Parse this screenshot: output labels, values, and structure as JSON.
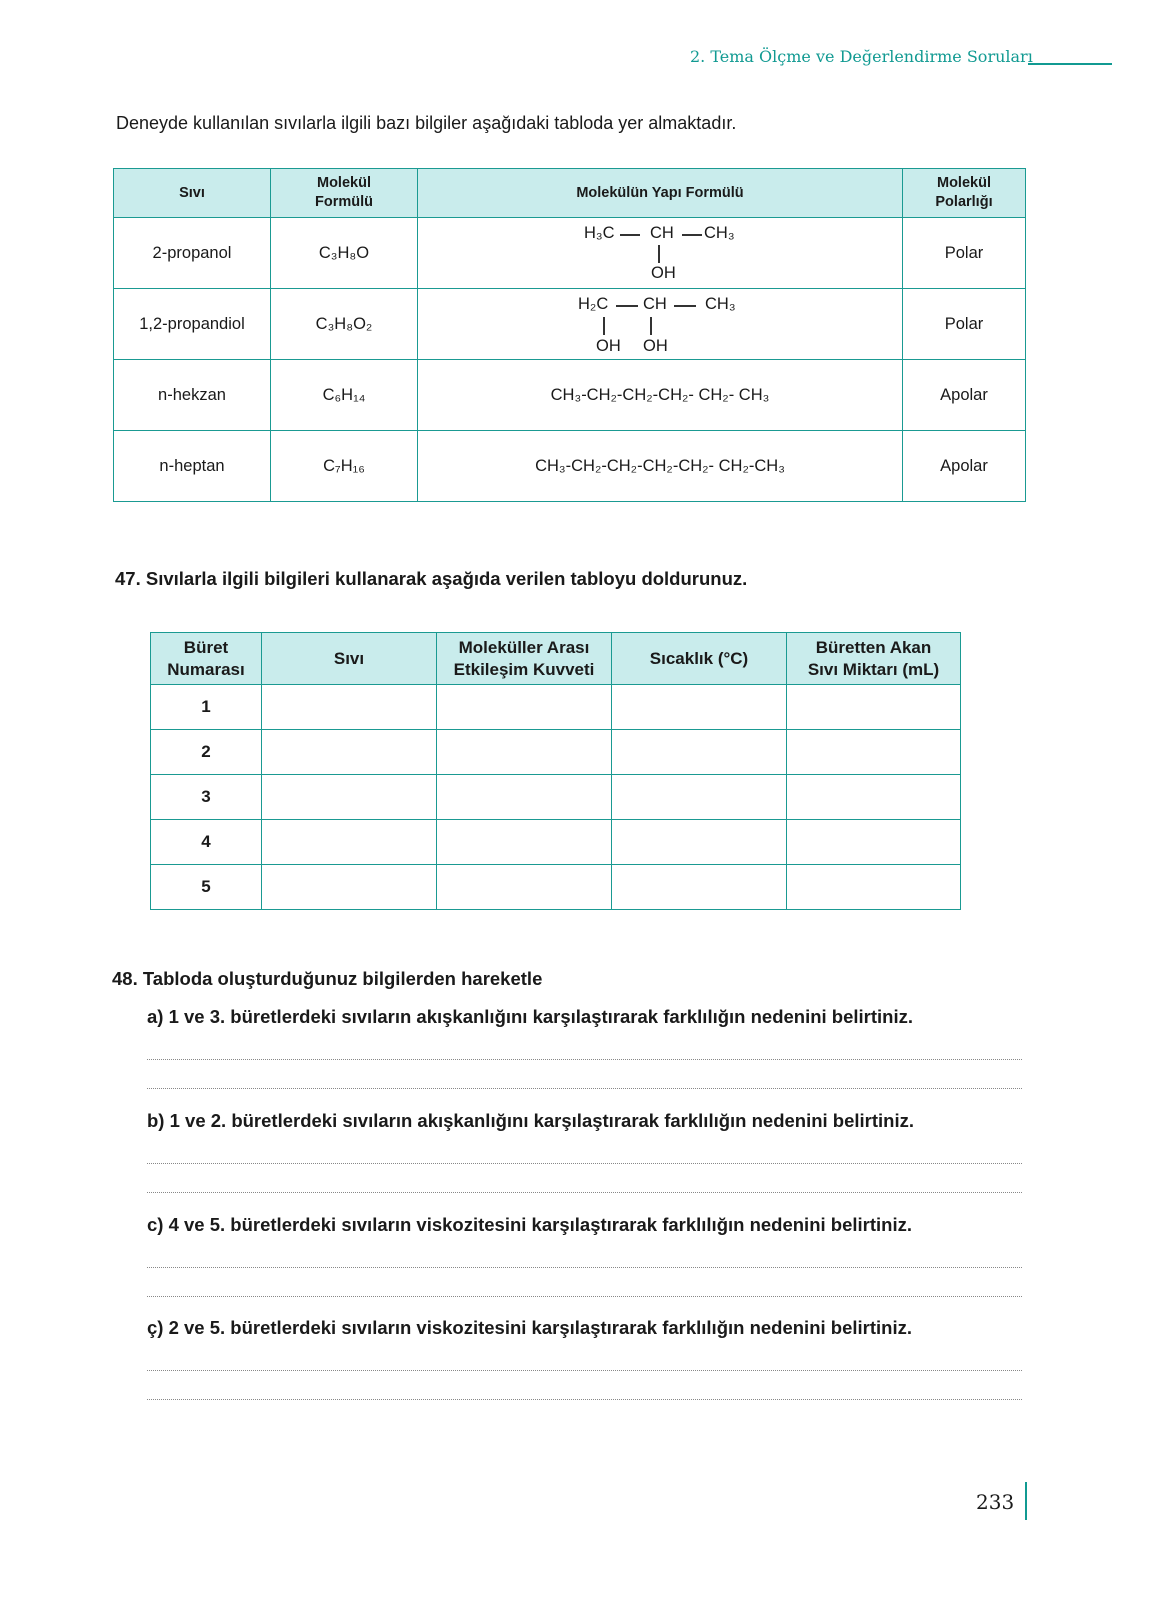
{
  "header": {
    "title": "2. Tema Ölçme ve Değerlendirme Soruları"
  },
  "intro": "Deneyde kullanılan sıvılarla ilgili bazı bilgiler aşağıdaki tabloda yer almaktadır.",
  "table1": {
    "headers": [
      "Sıvı",
      "Molekül Formülü",
      "Molekülün Yapı Formülü",
      "Molekül Polarlığı"
    ],
    "rows": [
      {
        "name": "2-propanol",
        "formula": "C₃H₈O",
        "structure": {
          "a": "H₃C",
          "b": "CH",
          "c": "CH₃",
          "oh1": "OH"
        },
        "polarity": "Polar"
      },
      {
        "name": "1,2-propandiol",
        "formula": "C₃H₈O₂",
        "structure": {
          "a": "H₂C",
          "b": "CH",
          "c": "CH₃",
          "oh1": "OH",
          "oh2": "OH"
        },
        "polarity": "Polar"
      },
      {
        "name": "n-hekzan",
        "formula": "C₆H₁₄",
        "structure": "CH₃-CH₂-CH₂-CH₂- CH₂- CH₃",
        "polarity": "Apolar"
      },
      {
        "name": "n-heptan",
        "formula": "C₇H₁₆",
        "structure": "CH₃-CH₂-CH₂-CH₂-CH₂- CH₂-CH₃",
        "polarity": "Apolar"
      }
    ]
  },
  "q47": {
    "number": "47.",
    "text": "Sıvılarla ilgili bilgileri kullanarak aşağıda verilen tabloyu doldurunuz."
  },
  "table2": {
    "headers": [
      "Büret Numarası",
      "Sıvı",
      "Moleküller Arası Etkileşim Kuvveti",
      "Sıcaklık (°C)",
      "Büretten Akan Sıvı Miktarı (mL)"
    ],
    "rows": [
      "1",
      "2",
      "3",
      "4",
      "5"
    ]
  },
  "q48": {
    "number": "48.",
    "text": "Tabloda oluşturduğunuz bilgilerden hareketle",
    "items": [
      "a) 1 ve 3. büretlerdeki sıvıların akışkanlığını karşılaştırarak farklılığın nedenini belirtiniz.",
      "b) 1 ve 2. büretlerdeki sıvıların akışkanlığını karşılaştırarak farklılığın nedenini belirtiniz.",
      "c) 4 ve 5. büretlerdeki sıvıların viskozitesini karşılaştırarak farklılığın nedenini belirtiniz.",
      "ç) 2 ve 5. büretlerdeki sıvıların viskozitesini karşılaştırarak farklılığın nedenini belirtiniz."
    ]
  },
  "page_number": "233",
  "colors": {
    "accent": "#119a92",
    "header_fill": "#c9ecec"
  }
}
